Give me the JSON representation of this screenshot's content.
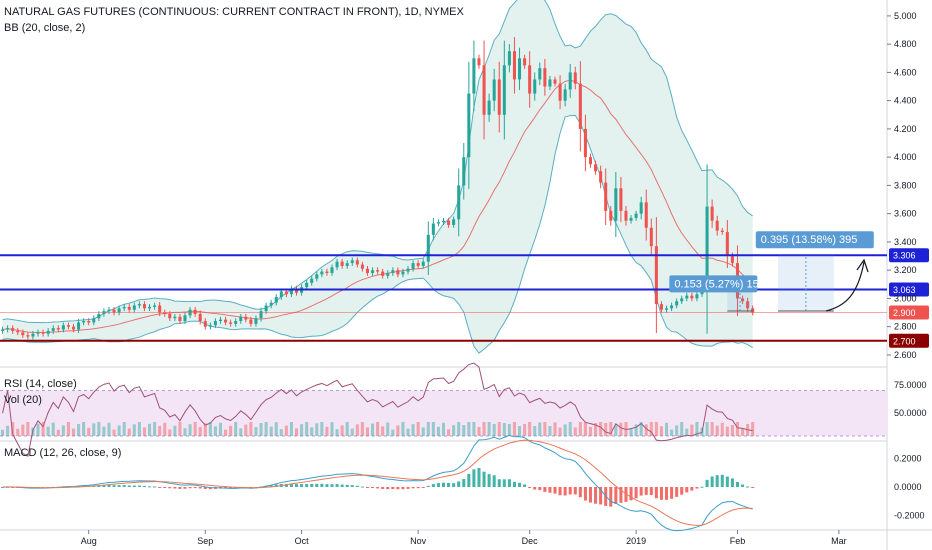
{
  "header": {
    "title": "NATURAL GAS FUTURES (CONTINUOUS: CURRENT CONTRACT IN FRONT), 1D, NYMEX",
    "bb": "BB (20, close, 2)",
    "rsi": "RSI (14, close)",
    "vol": "Vol (20)",
    "macd": "MACD (12, 26, close, 9)"
  },
  "colors": {
    "up": "#26a69a",
    "down": "#ef5350",
    "bb_fill": "#e3f2ef",
    "bb_band": "#5aaec4",
    "bb_basis": "#e57373",
    "blue_level": "#1e22d6",
    "red_level": "#8b0000",
    "rsi_line": "#a0507a",
    "rsi_fill": "#f3e5f5",
    "macd_line": "#3aa0c8",
    "signal_line": "#e8795b",
    "measure": "#5b9bd5"
  },
  "chart_data": [
    {
      "type": "candlestick",
      "name": "price",
      "ylim": [
        2.55,
        5.07
      ],
      "y_ticks": [
        "5.000",
        "4.800",
        "4.600",
        "4.400",
        "4.200",
        "4.000",
        "3.800",
        "3.600",
        "3.400",
        "3.200",
        "3.000",
        "2.800",
        "2.600"
      ],
      "x_labels": [
        {
          "label": "Aug",
          "index": 17
        },
        {
          "label": "Sep",
          "index": 40
        },
        {
          "label": "Oct",
          "index": 59
        },
        {
          "label": "Nov",
          "index": 82
        },
        {
          "label": "Dec",
          "index": 104
        },
        {
          "label": "2019",
          "index": 125
        },
        {
          "label": "Feb",
          "index": 145
        },
        {
          "label": "Mar",
          "index": 165
        }
      ],
      "n_slots": 175,
      "close": [
        2.78,
        2.79,
        2.77,
        2.76,
        2.74,
        2.73,
        2.75,
        2.76,
        2.75,
        2.77,
        2.79,
        2.78,
        2.81,
        2.8,
        2.78,
        2.83,
        2.84,
        2.83,
        2.86,
        2.89,
        2.91,
        2.92,
        2.9,
        2.93,
        2.94,
        2.92,
        2.95,
        2.96,
        2.93,
        2.94,
        2.95,
        2.9,
        2.89,
        2.86,
        2.87,
        2.84,
        2.88,
        2.92,
        2.89,
        2.84,
        2.8,
        2.81,
        2.84,
        2.85,
        2.83,
        2.82,
        2.84,
        2.87,
        2.85,
        2.82,
        2.86,
        2.91,
        2.95,
        2.97,
        3.01,
        3.05,
        3.03,
        3.07,
        3.04,
        3.08,
        3.11,
        3.14,
        3.17,
        3.19,
        3.18,
        3.22,
        3.26,
        3.23,
        3.25,
        3.27,
        3.24,
        3.21,
        3.18,
        3.2,
        3.19,
        3.16,
        3.18,
        3.2,
        3.17,
        3.19,
        3.21,
        3.25,
        3.23,
        3.26,
        3.45,
        3.53,
        3.54,
        3.55,
        3.52,
        3.56,
        3.8,
        4.0,
        4.45,
        4.7,
        4.65,
        4.3,
        4.4,
        4.55,
        4.3,
        4.65,
        4.75,
        4.55,
        4.7,
        4.65,
        4.45,
        4.55,
        4.63,
        4.5,
        4.55,
        4.52,
        4.4,
        4.48,
        4.6,
        4.52,
        4.2,
        4.0,
        3.95,
        3.9,
        3.82,
        3.62,
        3.55,
        3.78,
        3.62,
        3.55,
        3.57,
        3.6,
        3.68,
        3.5,
        3.37,
        2.96,
        2.92,
        2.93,
        2.95,
        2.98,
        3.0,
        3.02,
        3.0,
        3.03,
        3.05,
        3.65,
        3.55,
        3.48,
        3.47,
        3.3,
        3.25,
        3.0,
        2.98,
        2.93,
        2.9
      ],
      "yopen": [
        2.77,
        2.78,
        2.79,
        2.77,
        2.76,
        2.74,
        2.73,
        2.75,
        2.76,
        2.75,
        2.77,
        2.79,
        2.78,
        2.81,
        2.8,
        2.78,
        2.83,
        2.84,
        2.83,
        2.86,
        2.89,
        2.91,
        2.92,
        2.9,
        2.93,
        2.94,
        2.92,
        2.95,
        2.96,
        2.93,
        2.94,
        2.95,
        2.9,
        2.89,
        2.86,
        2.87,
        2.84,
        2.88,
        2.92,
        2.89,
        2.84,
        2.8,
        2.81,
        2.84,
        2.85,
        2.83,
        2.82,
        2.84,
        2.87,
        2.85,
        2.82,
        2.86,
        2.91,
        2.95,
        2.97,
        3.01,
        3.05,
        3.03,
        3.07,
        3.04,
        3.08,
        3.11,
        3.14,
        3.17,
        3.19,
        3.18,
        3.22,
        3.26,
        3.23,
        3.25,
        3.27,
        3.24,
        3.21,
        3.18,
        3.2,
        3.19,
        3.16,
        3.18,
        3.2,
        3.17,
        3.19,
        3.21,
        3.25,
        3.23,
        3.26,
        3.45,
        3.53,
        3.54,
        3.55,
        3.52,
        3.56,
        3.8,
        4.0,
        4.45,
        4.7,
        4.65,
        4.3,
        4.4,
        4.55,
        4.3,
        4.65,
        4.75,
        4.55,
        4.7,
        4.65,
        4.45,
        4.55,
        4.63,
        4.5,
        4.55,
        4.52,
        4.4,
        4.48,
        4.6,
        4.52,
        4.2,
        4.0,
        3.95,
        3.9,
        3.82,
        3.62,
        3.55,
        3.78,
        3.62,
        3.55,
        3.57,
        3.6,
        3.68,
        3.5,
        3.37,
        2.96,
        2.92,
        2.93,
        2.95,
        2.98,
        3.0,
        3.02,
        3.0,
        3.03,
        3.05,
        3.65,
        3.55,
        3.48,
        3.47,
        3.3,
        3.25,
        3.0,
        2.98,
        2.93
      ],
      "levels": [
        {
          "value": 3.306,
          "label": "3.306",
          "color": "#1e22d6"
        },
        {
          "value": 3.063,
          "label": "3.063",
          "color": "#1e22d6"
        },
        {
          "value": 2.9,
          "label": "2.900",
          "color": "#ef5350"
        },
        {
          "value": 2.7,
          "label": "2.700",
          "color": "#8b0000"
        }
      ],
      "measurements": [
        {
          "text": "0.395 (13.58%) 395",
          "from": 2.911,
          "to": 3.306,
          "i0": 153,
          "i1": 164
        },
        {
          "text": "0.153 (5.27%) 153",
          "from": 2.911,
          "to": 3.064,
          "i0": 143,
          "i1": 148
        }
      ]
    },
    {
      "type": "line",
      "name": "RSI",
      "ylim": [
        30,
        88
      ],
      "y_ticks": [
        "75.0000",
        "50.0000"
      ],
      "band": [
        30,
        70
      ]
    },
    {
      "type": "bar",
      "name": "Volume"
    },
    {
      "type": "bar+line",
      "name": "MACD",
      "ylim": [
        -0.29,
        0.29
      ],
      "y_ticks": [
        "0.2000",
        "0.0000",
        "-0.2000"
      ]
    }
  ]
}
